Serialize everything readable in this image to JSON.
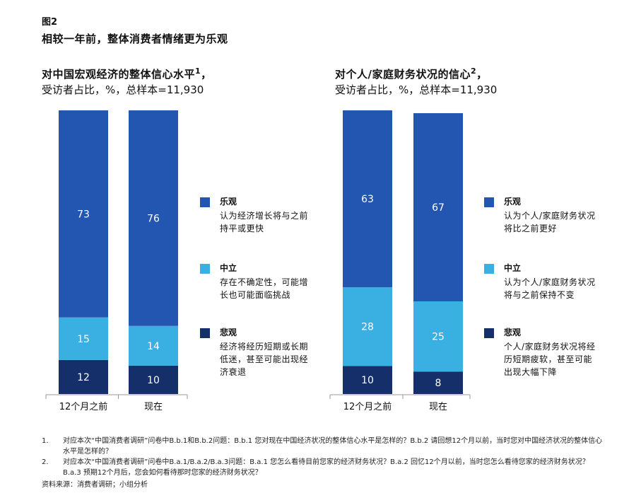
{
  "figure_label": "图2",
  "figure_title": "相较一年前，整体消费者情绪更为乐观",
  "colors": {
    "optimistic": "#2356b1",
    "neutral": "#3ab0e2",
    "pessimistic": "#152f6b",
    "axis": "#999999"
  },
  "chart_data": [
    {
      "type": "bar",
      "stacked": true,
      "title": "对中国宏观经济的整体信心水平",
      "title_sup": "1",
      "subtitle": "受访者占比，%，总样本=11,930",
      "categories": [
        "12个月之前",
        "现在"
      ],
      "series": [
        {
          "name": "悲观",
          "values": [
            12,
            10
          ]
        },
        {
          "name": "中立",
          "values": [
            15,
            14
          ]
        },
        {
          "name": "乐观",
          "values": [
            73,
            76
          ]
        }
      ],
      "ylim": [
        0,
        100
      ],
      "legend": [
        {
          "name": "乐观",
          "desc": "认为经济增长将与之前持平或更快"
        },
        {
          "name": "中立",
          "desc": "存在不确定性，可能增长也可能面临挑战"
        },
        {
          "name": "悲观",
          "desc": "经济将经历短期或长期低迷，甚至可能出现经济衰退"
        }
      ]
    },
    {
      "type": "bar",
      "stacked": true,
      "title": "对个人/家庭财务状况的信心",
      "title_sup": "2",
      "subtitle": "受访者占比，%，总样本=11,930",
      "categories": [
        "12个月之前",
        "现在"
      ],
      "series": [
        {
          "name": "悲观",
          "values": [
            10,
            8
          ]
        },
        {
          "name": "中立",
          "values": [
            28,
            25
          ]
        },
        {
          "name": "乐观",
          "values": [
            63,
            67
          ]
        }
      ],
      "ylim": [
        0,
        101
      ],
      "legend": [
        {
          "name": "乐观",
          "desc": "认为个人/家庭财务状况将比之前更好"
        },
        {
          "name": "中立",
          "desc": "认为个人/家庭财务状况将与之前保持不变"
        },
        {
          "name": "悲观",
          "desc": "个人/家庭财务状况将经历短期疲软，甚至可能出现大幅下降"
        }
      ]
    }
  ],
  "footnotes": [
    {
      "num": "1.",
      "text": "对应本次“中国消费者调研”问卷中B.b.1和B.b.2问题：B.b.1 您对现在中国经济状况的整体信心水平是怎样的？B.b.2 请回想12个月以前，当时您对中国经济状况的整体信心水平是怎样的？"
    },
    {
      "num": "2.",
      "text": "对应本次“中国消费者调研”问卷中B.a.1/B.a.2/B.a.3问题：B.a.1 您怎么看待目前您家的经济财务状况？B.a.2 回忆12个月以前，当时您怎么看待您家的经济财务状况？B.a.3 预期12个月后，您会如何看待那时您家的经济财务状况？"
    }
  ],
  "source": "资料来源：消费者调研；小组分析"
}
